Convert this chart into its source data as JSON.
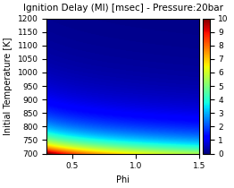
{
  "title": "Ignition Delay (MI) [msec] - Pressure:20bar",
  "xlabel": "Phi",
  "ylabel": "Initial Temperature [K]",
  "phi_min": 0.3,
  "phi_max": 1.5,
  "T_min": 700,
  "T_max": 1200,
  "colorbar_min": 0,
  "colorbar_max": 10,
  "colormap": "jet",
  "title_fontsize": 7.5,
  "label_fontsize": 7,
  "tick_fontsize": 6.5,
  "colorbar_fontsize": 6.5
}
